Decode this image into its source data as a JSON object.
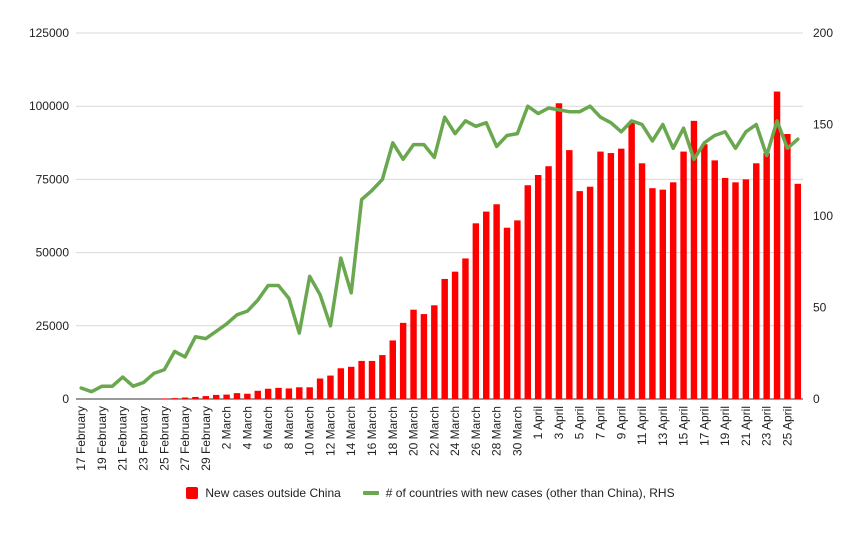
{
  "chart_data": {
    "type": "bar",
    "categories": [
      "17 February",
      "18 February",
      "19 February",
      "20 February",
      "21 February",
      "22 February",
      "23 February",
      "24 February",
      "25 February",
      "26 February",
      "27 February",
      "28 February",
      "29 February",
      "1 March",
      "2 March",
      "3 March",
      "4 March",
      "5 March",
      "6 March",
      "7 March",
      "8 March",
      "9 March",
      "10 March",
      "11 March",
      "12 March",
      "13 March",
      "14 March",
      "15 March",
      "16 March",
      "17 March",
      "18 March",
      "19 March",
      "20 March",
      "21 March",
      "22 March",
      "23 March",
      "24 March",
      "25 March",
      "26 March",
      "27 March",
      "28 March",
      "29 March",
      "30 March",
      "31 March",
      "1 April",
      "2 April",
      "3 April",
      "4 April",
      "5 April",
      "6 April",
      "7 April",
      "8 April",
      "9 April",
      "10 April",
      "11 April",
      "12 April",
      "13 April",
      "14 April",
      "15 April",
      "16 April",
      "17 April",
      "18 April",
      "19 April",
      "20 April",
      "21 April",
      "22 April",
      "23 April",
      "24 April",
      "25 April",
      "26 April"
    ],
    "tick_labels": [
      "17 February",
      "19 February",
      "21 February",
      "23 February",
      "25 February",
      "27 February",
      "29 February",
      "2 March",
      "4 March",
      "6 March",
      "8 March",
      "10 March",
      "12 March",
      "14 March",
      "16 March",
      "18 March",
      "20 March",
      "22 March",
      "24 March",
      "26 March",
      "28 March",
      "30 March",
      "1 April",
      "3 April",
      "5 April",
      "7 April",
      "9 April",
      "11 April",
      "13 April",
      "15 April",
      "17 April",
      "19 April",
      "21 April",
      "23 April",
      "25 April"
    ],
    "series": [
      {
        "name": "New cases outside China",
        "axis": "left",
        "kind": "bar",
        "color": "#ff0000",
        "values": [
          0,
          0,
          0,
          0,
          0,
          0,
          0,
          0,
          200,
          300,
          500,
          700,
          1000,
          1400,
          1500,
          2000,
          1800,
          2800,
          3500,
          3800,
          3600,
          4000,
          4000,
          7000,
          8000,
          10500,
          11000,
          13000,
          13000,
          15000,
          20000,
          26000,
          30500,
          29000,
          32000,
          41000,
          43500,
          48000,
          60000,
          64000,
          66500,
          58500,
          61000,
          73000,
          76500,
          79500,
          101000,
          85000,
          71000,
          72500,
          84500,
          84000,
          85500,
          94500,
          80500,
          72000,
          71500,
          74000,
          84500,
          95000,
          87000,
          81500,
          75500,
          74000,
          75000,
          80500,
          84000,
          105000,
          90500,
          73500
        ]
      },
      {
        "name": "# of countries with new cases (other than China), RHS",
        "axis": "right",
        "kind": "line",
        "color": "#6aa84f",
        "values": [
          6,
          4,
          7,
          7,
          12,
          7,
          9,
          14,
          16,
          26,
          23,
          34,
          33,
          37,
          41,
          46,
          48,
          54,
          62,
          62,
          55,
          36,
          67,
          57,
          40,
          77,
          58,
          109,
          114,
          120,
          140,
          131,
          139,
          139,
          132,
          154,
          145,
          152,
          149,
          151,
          138,
          144,
          145,
          160,
          156,
          159,
          158,
          157,
          157,
          160,
          154,
          151,
          146,
          152,
          150,
          141,
          150,
          137,
          148,
          131,
          140,
          144,
          146,
          137,
          146,
          150,
          133,
          152,
          137,
          142
        ]
      }
    ],
    "y_left": {
      "min": 0,
      "max": 125000,
      "ticks": [
        "0",
        "25000",
        "50000",
        "75000",
        "100000",
        "125000"
      ]
    },
    "y_right": {
      "min": 0,
      "max": 200,
      "ticks": [
        "0",
        "50",
        "100",
        "150",
        "200"
      ]
    },
    "grid": true,
    "legend_position": "bottom"
  }
}
